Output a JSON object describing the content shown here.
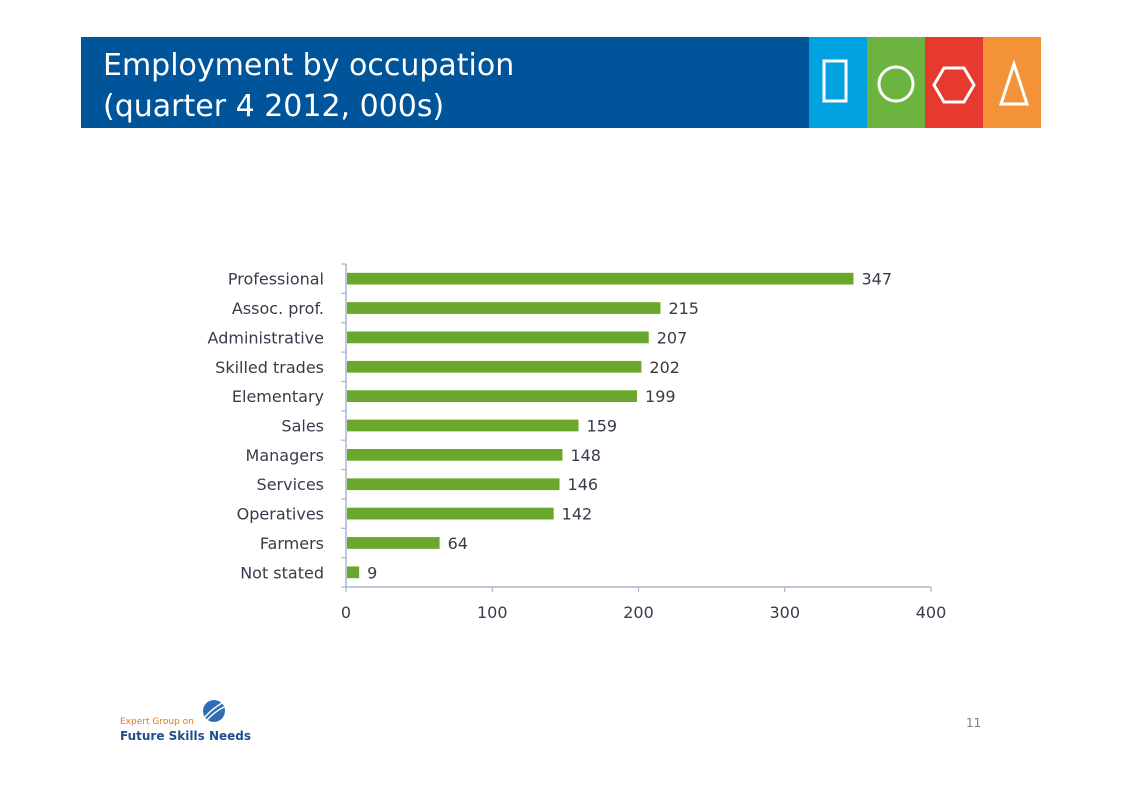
{
  "slide": {
    "title_line1": "Employment by occupation",
    "title_line2": "(quarter 4 2012, 000s)",
    "page_number": "11"
  },
  "header_shapes": [
    {
      "name": "square-icon",
      "color": "#00a3e0"
    },
    {
      "name": "circle-icon",
      "color": "#6db33f"
    },
    {
      "name": "hexagon-icon",
      "color": "#e63a2e"
    },
    {
      "name": "triangle-icon",
      "color": "#f39237"
    }
  ],
  "footer": {
    "logo_line1": "Expert Group on",
    "logo_line2": "Future Skills Needs"
  },
  "colors": {
    "banner": "#00549a",
    "bar": "#6aa82b",
    "label_text": "#3a3a4a"
  },
  "chart_data": {
    "type": "bar",
    "orientation": "horizontal",
    "categories": [
      "Professional",
      "Assoc. prof.",
      "Administrative",
      "Skilled trades",
      "Elementary",
      "Sales",
      "Managers",
      "Services",
      "Operatives",
      "Farmers",
      "Not stated"
    ],
    "values": [
      347,
      215,
      207,
      202,
      199,
      159,
      148,
      146,
      142,
      64,
      9
    ],
    "data_labels": [
      "347",
      "215",
      "207",
      "202",
      "199",
      "159",
      "148",
      "146",
      "142",
      "64",
      "9"
    ],
    "xlim": [
      0,
      400
    ],
    "xticks": [
      0,
      100,
      200,
      300,
      400
    ],
    "xtick_labels": [
      "0",
      "100",
      "200",
      "300",
      "400"
    ],
    "grid": false,
    "legend": "none"
  }
}
